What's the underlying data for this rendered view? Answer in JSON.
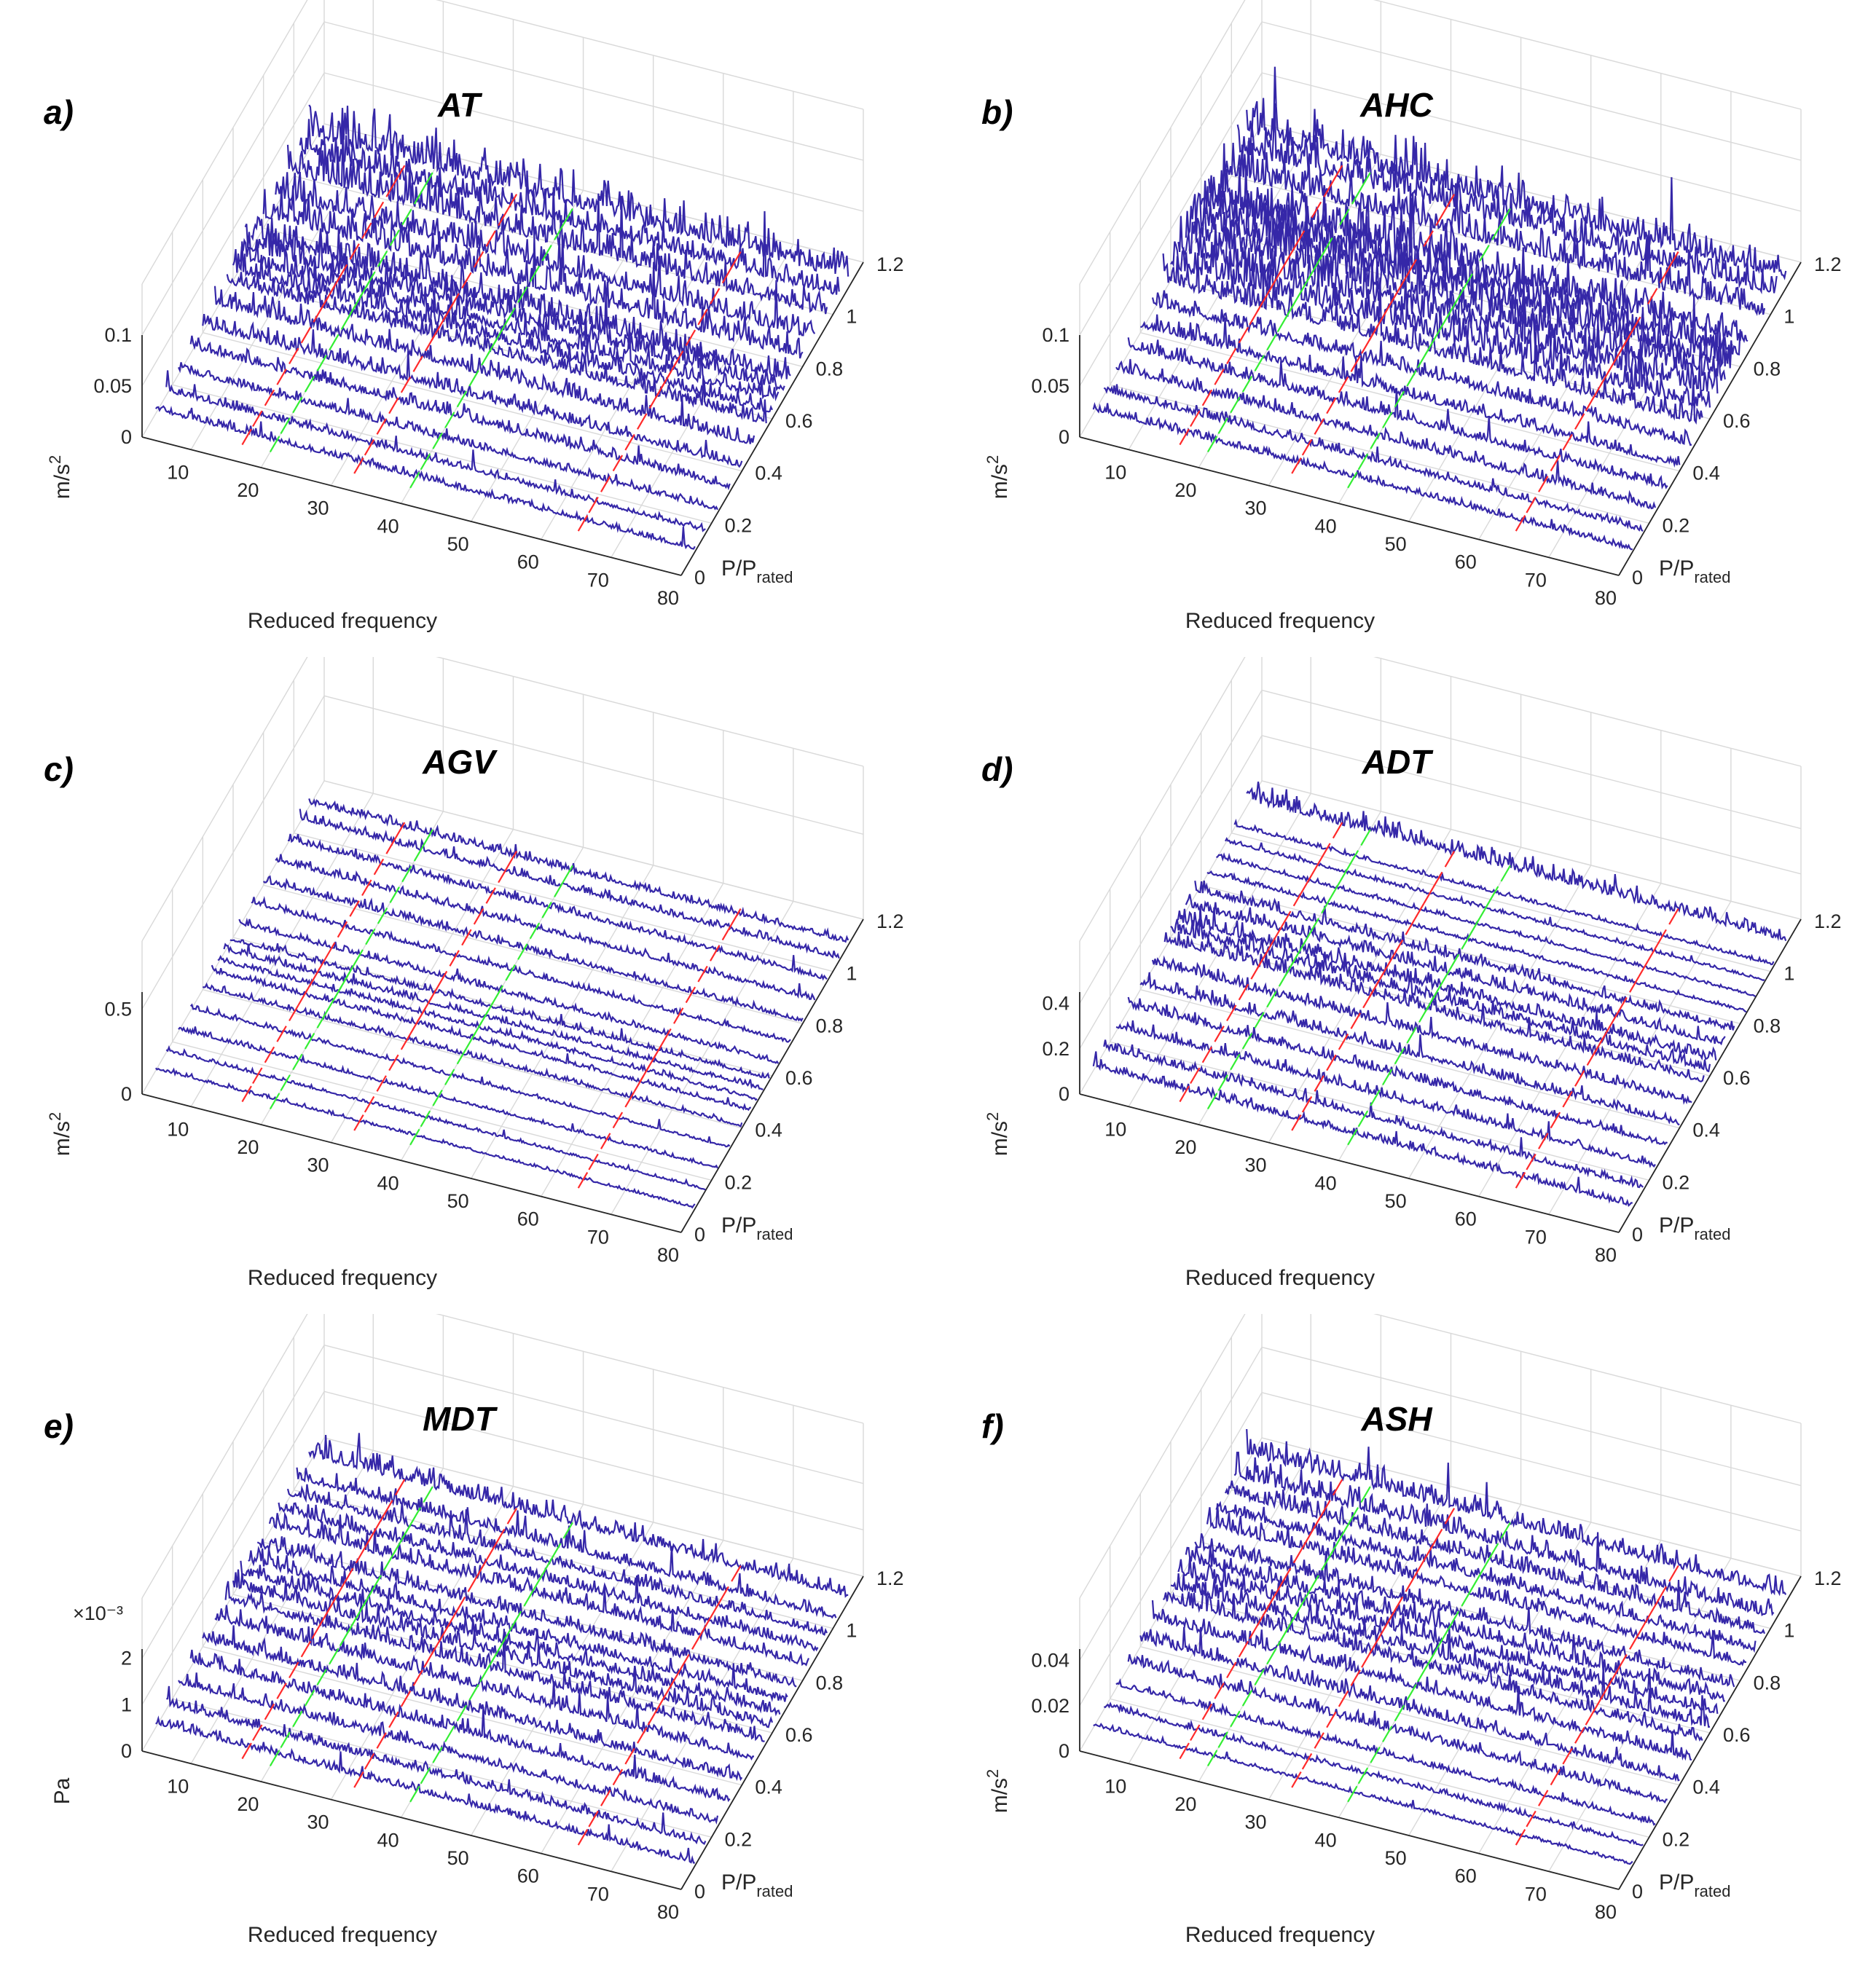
{
  "chart_data": [
    {
      "type": "waterfall",
      "letter": "a)",
      "title": "AT",
      "xlabel": "Reduced frequency",
      "ylabel": "P/P",
      "ylabel_sub": "rated",
      "zlabel": "m/s",
      "zlabel_sup": "2",
      "x_ticks": [
        "10",
        "20",
        "30",
        "40",
        "50",
        "60",
        "70",
        "80"
      ],
      "y_ticks": [
        "0",
        "0.2",
        "0.4",
        "0.6",
        "0.8",
        "1",
        "1.2"
      ],
      "z_ticks": [
        "0",
        "0.05",
        "0.1"
      ],
      "z_multiplier": "",
      "xlim": [
        3,
        80
      ],
      "ylim": [
        0,
        1.2
      ],
      "zlim": [
        0,
        0.1
      ],
      "load_levels": [
        0.09,
        0.16,
        0.24,
        0.32,
        0.4,
        0.48,
        0.56,
        0.6,
        0.64,
        0.68,
        0.72,
        0.8,
        0.88,
        0.96,
        1.04,
        1.1
      ],
      "amplitude_level": [
        0.012,
        0.013,
        0.015,
        0.02,
        0.022,
        0.028,
        0.03,
        0.033,
        0.035,
        0.04,
        0.04,
        0.045,
        0.04,
        0.05,
        0.045,
        0.055
      ],
      "red_marker_frequencies": [
        16,
        32,
        64
      ],
      "green_marker_frequencies": [
        20,
        40
      ]
    },
    {
      "type": "waterfall",
      "letter": "b)",
      "title": "AHC",
      "xlabel": "Reduced frequency",
      "ylabel": "P/P",
      "ylabel_sub": "rated",
      "zlabel": "m/s",
      "zlabel_sup": "2",
      "x_ticks": [
        "10",
        "20",
        "30",
        "40",
        "50",
        "60",
        "70",
        "80"
      ],
      "y_ticks": [
        "0",
        "0.2",
        "0.4",
        "0.6",
        "0.8",
        "1",
        "1.2"
      ],
      "z_ticks": [
        "0",
        "0.05",
        "0.1"
      ],
      "z_multiplier": "",
      "xlim": [
        3,
        80
      ],
      "ylim": [
        0,
        1.2
      ],
      "zlim": [
        0,
        0.1
      ],
      "load_levels": [
        0.09,
        0.16,
        0.24,
        0.32,
        0.4,
        0.48,
        0.55,
        0.6,
        0.65,
        0.7,
        0.75,
        0.8,
        0.85,
        0.96,
        1.04,
        1.1
      ],
      "amplitude_level": [
        0.012,
        0.015,
        0.018,
        0.02,
        0.022,
        0.025,
        0.04,
        0.05,
        0.06,
        0.065,
        0.065,
        0.06,
        0.06,
        0.05,
        0.05,
        0.055
      ],
      "red_marker_frequencies": [
        16,
        32,
        64
      ],
      "green_marker_frequencies": [
        20,
        40
      ]
    },
    {
      "type": "waterfall",
      "letter": "c)",
      "title": "AGV",
      "xlabel": "Reduced frequency",
      "ylabel": "P/P",
      "ylabel_sub": "rated",
      "zlabel": "m/s",
      "zlabel_sup": "2",
      "x_ticks": [
        "10",
        "20",
        "30",
        "40",
        "50",
        "60",
        "70",
        "80"
      ],
      "y_ticks": [
        "0",
        "0.2",
        "0.4",
        "0.6",
        "0.8",
        "1",
        "1.2"
      ],
      "z_ticks": [
        "0",
        "0.5"
      ],
      "z_multiplier": "",
      "xlim": [
        3,
        80
      ],
      "ylim": [
        0,
        1.2
      ],
      "zlim": [
        0,
        0.6
      ],
      "load_levels": [
        0.09,
        0.16,
        0.24,
        0.32,
        0.4,
        0.46,
        0.5,
        0.54,
        0.58,
        0.64,
        0.72,
        0.8,
        0.88,
        0.96,
        1.04,
        1.1
      ],
      "amplitude_level": [
        0.03,
        0.03,
        0.04,
        0.04,
        0.05,
        0.05,
        0.06,
        0.06,
        0.06,
        0.06,
        0.06,
        0.07,
        0.07,
        0.07,
        0.08,
        0.08
      ],
      "red_marker_frequencies": [
        16,
        32,
        64
      ],
      "green_marker_frequencies": [
        20,
        40
      ]
    },
    {
      "type": "waterfall",
      "letter": "d)",
      "title": "ADT",
      "xlabel": "Reduced frequency",
      "ylabel": "P/P",
      "ylabel_sub": "rated",
      "zlabel": "m/s",
      "zlabel_sup": "2",
      "x_ticks": [
        "10",
        "20",
        "30",
        "40",
        "50",
        "60",
        "70",
        "80"
      ],
      "y_ticks": [
        "0",
        "0.2",
        "0.4",
        "0.6",
        "0.8",
        "1",
        "1.2"
      ],
      "z_ticks": [
        "0",
        "0.2",
        "0.4"
      ],
      "z_multiplier": "",
      "xlim": [
        3,
        80
      ],
      "ylim": [
        0,
        1.2
      ],
      "zlim": [
        0,
        0.45
      ],
      "load_levels": [
        0.09,
        0.16,
        0.24,
        0.32,
        0.4,
        0.48,
        0.56,
        0.6,
        0.64,
        0.7,
        0.76,
        0.84,
        0.9,
        0.96,
        1.02,
        1.1
      ],
      "amplitude_level": [
        0.06,
        0.06,
        0.07,
        0.07,
        0.08,
        0.08,
        0.1,
        0.11,
        0.1,
        0.09,
        0.08,
        0.03,
        0.03,
        0.03,
        0.03,
        0.12
      ],
      "red_marker_frequencies": [
        16,
        32,
        64
      ],
      "green_marker_frequencies": [
        20,
        40
      ]
    },
    {
      "type": "waterfall",
      "letter": "e)",
      "title": "MDT",
      "xlabel": "Reduced frequency",
      "ylabel": "P/P",
      "ylabel_sub": "rated",
      "zlabel": "Pa",
      "zlabel_sup": "",
      "x_ticks": [
        "10",
        "20",
        "30",
        "40",
        "50",
        "60",
        "70",
        "80"
      ],
      "y_ticks": [
        "0",
        "0.2",
        "0.4",
        "0.6",
        "0.8",
        "1",
        "1.2"
      ],
      "z_ticks": [
        "0",
        "1",
        "2"
      ],
      "z_multiplier": "×10⁻³",
      "xlim": [
        3,
        80
      ],
      "ylim": [
        0,
        1.2
      ],
      "zlim": [
        0,
        2.2
      ],
      "load_levels": [
        0.09,
        0.16,
        0.24,
        0.32,
        0.4,
        0.48,
        0.55,
        0.6,
        0.65,
        0.7,
        0.76,
        0.84,
        0.9,
        0.96,
        1.02,
        1.1
      ],
      "amplitude_level": [
        0.3,
        0.35,
        0.4,
        0.45,
        0.5,
        0.5,
        0.55,
        0.6,
        0.55,
        0.5,
        0.5,
        0.5,
        0.45,
        0.45,
        0.5,
        0.7
      ],
      "red_marker_frequencies": [
        16,
        32,
        64
      ],
      "green_marker_frequencies": [
        20,
        40
      ]
    },
    {
      "type": "waterfall",
      "letter": "f)",
      "title": "ASH",
      "xlabel": "Reduced frequency",
      "ylabel": "P/P",
      "ylabel_sub": "rated",
      "zlabel": "m/s",
      "zlabel_sup": "2",
      "x_ticks": [
        "10",
        "20",
        "30",
        "40",
        "50",
        "60",
        "70",
        "80"
      ],
      "y_ticks": [
        "0",
        "0.2",
        "0.4",
        "0.6",
        "0.8",
        "1",
        "1.2"
      ],
      "z_ticks": [
        "0",
        "0.02",
        "0.04"
      ],
      "z_multiplier": "",
      "xlim": [
        3,
        80
      ],
      "ylim": [
        0,
        1.2
      ],
      "zlim": [
        0,
        0.045
      ],
      "load_levels": [
        0.09,
        0.16,
        0.24,
        0.32,
        0.4,
        0.48,
        0.55,
        0.6,
        0.65,
        0.7,
        0.76,
        0.84,
        0.9,
        0.96,
        1.02,
        1.1
      ],
      "amplitude_level": [
        0.003,
        0.004,
        0.005,
        0.008,
        0.01,
        0.01,
        0.012,
        0.012,
        0.012,
        0.012,
        0.01,
        0.01,
        0.01,
        0.012,
        0.014,
        0.016
      ],
      "red_marker_frequencies": [
        16,
        32,
        64
      ],
      "green_marker_frequencies": [
        20,
        40
      ]
    }
  ],
  "colors": {
    "trace": "#3527a8",
    "red_marker": "#ff2a2a",
    "green_marker": "#33ee33",
    "grid": "#d9d9d9",
    "axis": "#262626"
  }
}
